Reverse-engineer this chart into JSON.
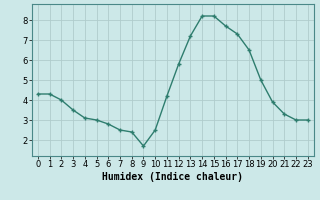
{
  "x": [
    0,
    1,
    2,
    3,
    4,
    5,
    6,
    7,
    8,
    9,
    10,
    11,
    12,
    13,
    14,
    15,
    16,
    17,
    18,
    19,
    20,
    21,
    22,
    23
  ],
  "y": [
    4.3,
    4.3,
    4.0,
    3.5,
    3.1,
    3.0,
    2.8,
    2.5,
    2.4,
    1.7,
    2.5,
    4.2,
    5.8,
    7.2,
    8.2,
    8.2,
    7.7,
    7.3,
    6.5,
    5.0,
    3.9,
    3.3,
    3.0,
    3.0
  ],
  "title": "",
  "xlabel": "Humidex (Indice chaleur)",
  "ylabel": "",
  "xlim": [
    -0.5,
    23.5
  ],
  "ylim": [
    1.2,
    8.8
  ],
  "yticks": [
    2,
    3,
    4,
    5,
    6,
    7,
    8
  ],
  "xticks": [
    0,
    1,
    2,
    3,
    4,
    5,
    6,
    7,
    8,
    9,
    10,
    11,
    12,
    13,
    14,
    15,
    16,
    17,
    18,
    19,
    20,
    21,
    22,
    23
  ],
  "line_color": "#2e7d6e",
  "marker": "+",
  "marker_size": 3.5,
  "marker_linewidth": 1.0,
  "linewidth": 1.0,
  "background_color": "#cce8e8",
  "grid_color": "#b0cccc",
  "tick_fontsize": 6.0,
  "xlabel_fontsize": 7.0
}
